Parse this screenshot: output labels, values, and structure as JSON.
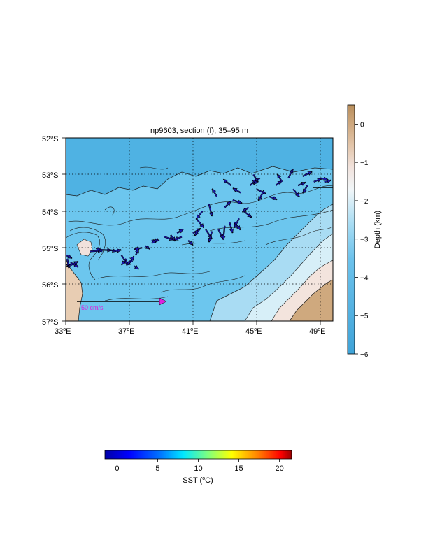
{
  "map": {
    "title": "np9603, section (f), 35–95 m",
    "x_ticks": [
      {
        "lon": 33,
        "text": "33",
        "suffix": "E"
      },
      {
        "lon": 37,
        "text": "37",
        "suffix": "E"
      },
      {
        "lon": 41,
        "text": "41",
        "suffix": "E"
      },
      {
        "lon": 45,
        "text": "45",
        "suffix": "E"
      },
      {
        "lon": 49,
        "text": "49",
        "suffix": "E"
      }
    ],
    "y_ticks": [
      {
        "lat": -52,
        "text": "52",
        "suffix": "S"
      },
      {
        "lat": -53,
        "text": "53",
        "suffix": "S"
      },
      {
        "lat": -54,
        "text": "54",
        "suffix": "S"
      },
      {
        "lat": -55,
        "text": "55",
        "suffix": "S"
      },
      {
        "lat": -56,
        "text": "56",
        "suffix": "S"
      },
      {
        "lat": -57,
        "text": "57",
        "suffix": "S"
      }
    ],
    "lon_range": [
      33,
      49.8
    ],
    "lat_range": [
      -57,
      -52
    ],
    "grid": "dotted",
    "scale_label": "50 cm/s",
    "scale_arrow_color": "#dd22dd"
  },
  "depth_colorbar": {
    "label": "Depth (km)",
    "ticks": [
      "0",
      "−1",
      "−2",
      "−3",
      "−4",
      "−5",
      "−6"
    ],
    "tick_values": [
      0,
      -1,
      -2,
      -3,
      -4,
      -5,
      -6
    ],
    "range": [
      -6,
      0.5
    ],
    "colors": [
      "#3fa3d8",
      "#6cc2ec",
      "#a7dcf3",
      "#e2f3f8",
      "#f1e2dc",
      "#e4c7ad",
      "#cda67b",
      "#b88e5c"
    ]
  },
  "sst_colorbar": {
    "label_prefix": "SST (",
    "label_unit": "C)",
    "ticks": [
      "0",
      "5",
      "10",
      "15",
      "20"
    ],
    "tick_values": [
      0,
      5,
      10,
      15,
      20
    ],
    "range": [
      -1.5,
      21.5
    ]
  },
  "vectors": {
    "color": "#1a16a8",
    "items": [
      [
        33.1,
        -55.3,
        0.1,
        -0.6
      ],
      [
        33.3,
        -55.4,
        0.5,
        -0.3
      ],
      [
        33.0,
        -55.2,
        0.4,
        -0.2
      ],
      [
        33.2,
        -55.5,
        0.6,
        0.3
      ],
      [
        34.5,
        -55.1,
        0.8,
        0.05
      ],
      [
        35.0,
        -55.05,
        0.9,
        -0.05
      ],
      [
        35.3,
        -55.1,
        -0.4,
        0.2
      ],
      [
        35.6,
        -55.05,
        0.6,
        -0.1
      ],
      [
        36.0,
        -55.1,
        0.5,
        0.1
      ],
      [
        36.5,
        -55.2,
        0.4,
        -0.6
      ],
      [
        36.8,
        -55.3,
        -0.3,
        -0.4
      ],
      [
        37.0,
        -55.4,
        0.3,
        0.4
      ],
      [
        37.2,
        -55.35,
        -0.4,
        -0.3
      ],
      [
        37.3,
        -55.5,
        0.3,
        -0.2
      ],
      [
        37.4,
        -55.2,
        0.2,
        0.4
      ],
      [
        37.8,
        -55.0,
        -0.5,
        -0.1
      ],
      [
        38.0,
        -54.95,
        0.3,
        -0.2
      ],
      [
        38.4,
        -54.8,
        0.5,
        0.0
      ],
      [
        38.8,
        -54.75,
        -0.4,
        -0.3
      ],
      [
        39.2,
        -54.7,
        0.6,
        -0.2
      ],
      [
        39.6,
        -54.65,
        0.3,
        -0.4
      ],
      [
        40.0,
        -54.6,
        0.4,
        0.25
      ],
      [
        40.3,
        -54.7,
        -0.5,
        -0.2
      ],
      [
        40.7,
        -54.8,
        0.3,
        -0.3
      ],
      [
        41.0,
        -54.6,
        0.5,
        0.3
      ],
      [
        41.4,
        -54.5,
        -0.3,
        -0.4
      ],
      [
        41.8,
        -54.5,
        0.4,
        -0.6
      ],
      [
        42.2,
        -54.55,
        -0.2,
        -0.7
      ],
      [
        42.6,
        -54.5,
        0.3,
        -0.6
      ],
      [
        43.0,
        -54.4,
        -0.1,
        -0.9
      ],
      [
        43.3,
        -54.3,
        0.2,
        -0.7
      ],
      [
        43.6,
        -54.3,
        0.4,
        -0.5
      ],
      [
        43.9,
        -54.2,
        -0.3,
        -0.6
      ],
      [
        44.2,
        -54.0,
        0.5,
        -0.4
      ],
      [
        44.5,
        -53.9,
        -0.4,
        -0.3
      ],
      [
        41.2,
        -54.2,
        0.5,
        -0.6
      ],
      [
        41.6,
        -54.0,
        -0.4,
        -0.5
      ],
      [
        42.0,
        -53.8,
        0.2,
        -0.8
      ],
      [
        42.5,
        -53.6,
        -0.3,
        0.5
      ],
      [
        43.0,
        -53.9,
        0.4,
        0.4
      ],
      [
        43.5,
        -53.7,
        0.6,
        -0.2
      ],
      [
        44.0,
        -53.5,
        -0.5,
        0.3
      ],
      [
        44.6,
        -53.3,
        0.4,
        0.4
      ],
      [
        45.0,
        -53.4,
        0.6,
        -0.3
      ],
      [
        45.4,
        -53.5,
        -0.3,
        -0.5
      ],
      [
        45.8,
        -53.6,
        0.5,
        -0.2
      ],
      [
        46.2,
        -53.3,
        0.4,
        0.3
      ],
      [
        46.6,
        -53.2,
        -0.3,
        0.5
      ],
      [
        47.0,
        -53.1,
        0.3,
        0.6
      ],
      [
        47.3,
        -53.4,
        0.4,
        -0.5
      ],
      [
        47.6,
        -53.3,
        0.5,
        0.2
      ],
      [
        47.9,
        -53.05,
        0.6,
        0.3
      ],
      [
        48.2,
        -53.3,
        -0.3,
        -0.5
      ],
      [
        48.6,
        -53.2,
        0.5,
        0.2
      ],
      [
        49.0,
        -53.1,
        0.5,
        -0.1
      ],
      [
        49.3,
        -53.2,
        0.4,
        0.1
      ],
      [
        43.4,
        -53.3,
        -0.5,
        0.4
      ],
      [
        44.8,
        -53.0,
        0.3,
        -0.5
      ],
      [
        45.2,
        -53.1,
        -0.4,
        -0.4
      ]
    ]
  }
}
